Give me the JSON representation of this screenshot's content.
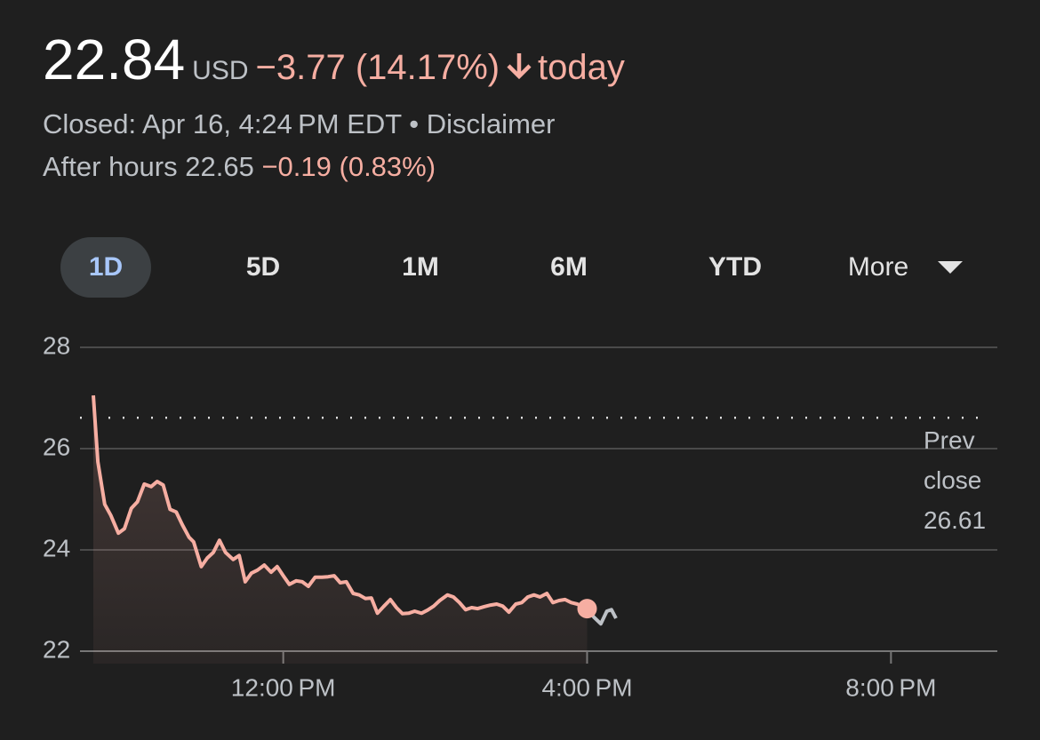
{
  "quote": {
    "price": "22.84",
    "currency": "USD",
    "change": "−3.77 (14.17%)",
    "period": "today",
    "status": "Closed: Apr 16, 4:24 PM EDT",
    "separator": "•",
    "disclaimer": "Disclaimer",
    "after_hours": "After hours 22.65",
    "after_hours_change": "−0.19 (0.83%)"
  },
  "ranges": [
    "1D",
    "5D",
    "1M",
    "6M",
    "YTD",
    "More"
  ],
  "chart_data": {
    "type": "line",
    "xlim": [
      9.5,
      21.4
    ],
    "ylim": [
      22,
      28
    ],
    "xticks": [
      {
        "value": 12,
        "label": "12:00 PM"
      },
      {
        "value": 16,
        "label": "4:00 PM"
      },
      {
        "value": 20,
        "label": "8:00 PM"
      }
    ],
    "yticks": [
      22,
      24,
      26,
      28
    ],
    "grid": true,
    "prev_close": {
      "label": "Prev close",
      "value": 26.61
    },
    "series": [
      {
        "color": "#f6aea2",
        "x": [
          9.5,
          9.56,
          9.65,
          9.73,
          9.83,
          9.91,
          10.0,
          10.08,
          10.17,
          10.26,
          10.34,
          10.42,
          10.51,
          10.59,
          10.67,
          10.76,
          10.82,
          10.92,
          11.0,
          11.08,
          11.16,
          11.24,
          11.34,
          11.42,
          11.5,
          11.58,
          11.66,
          11.75,
          11.84,
          11.92,
          12.0,
          12.08,
          12.17,
          12.25,
          12.33,
          12.42,
          12.51,
          12.59,
          12.67,
          12.75,
          12.83,
          12.92,
          13.0,
          13.08,
          13.16,
          13.24,
          13.32,
          13.41,
          13.49,
          13.57,
          13.65,
          13.73,
          13.82,
          13.9,
          13.98,
          14.06,
          14.16,
          14.24,
          14.32,
          14.4,
          14.48,
          14.56,
          14.65,
          14.73,
          14.81,
          14.89,
          14.97,
          15.06,
          15.14,
          15.22,
          15.3,
          15.38,
          15.47,
          15.55,
          15.63,
          15.71,
          15.79,
          15.87,
          16.0
        ],
        "values": [
          27.05,
          25.74,
          24.9,
          24.68,
          24.33,
          24.42,
          24.82,
          24.95,
          25.3,
          25.25,
          25.35,
          25.28,
          24.8,
          24.75,
          24.5,
          24.25,
          24.16,
          23.67,
          23.84,
          23.95,
          24.19,
          23.95,
          23.81,
          23.89,
          23.37,
          23.54,
          23.6,
          23.7,
          23.56,
          23.67,
          23.49,
          23.32,
          23.39,
          23.37,
          23.28,
          23.46,
          23.46,
          23.47,
          23.49,
          23.35,
          23.37,
          23.14,
          23.11,
          23.04,
          23.05,
          22.75,
          22.88,
          23.02,
          22.86,
          22.74,
          22.75,
          22.79,
          22.75,
          22.81,
          22.89,
          23.0,
          23.11,
          23.07,
          22.96,
          22.82,
          22.86,
          22.84,
          22.88,
          22.91,
          22.93,
          22.89,
          22.77,
          22.93,
          22.96,
          23.07,
          23.11,
          23.07,
          23.14,
          22.96,
          23.0,
          23.02,
          22.96,
          22.93,
          22.84
        ]
      },
      {
        "color": "#bdc1c6",
        "x": [
          16.0,
          16.09,
          16.18,
          16.26,
          16.32,
          16.38
        ],
        "values": [
          22.84,
          22.67,
          22.54,
          22.79,
          22.82,
          22.65
        ]
      }
    ]
  }
}
